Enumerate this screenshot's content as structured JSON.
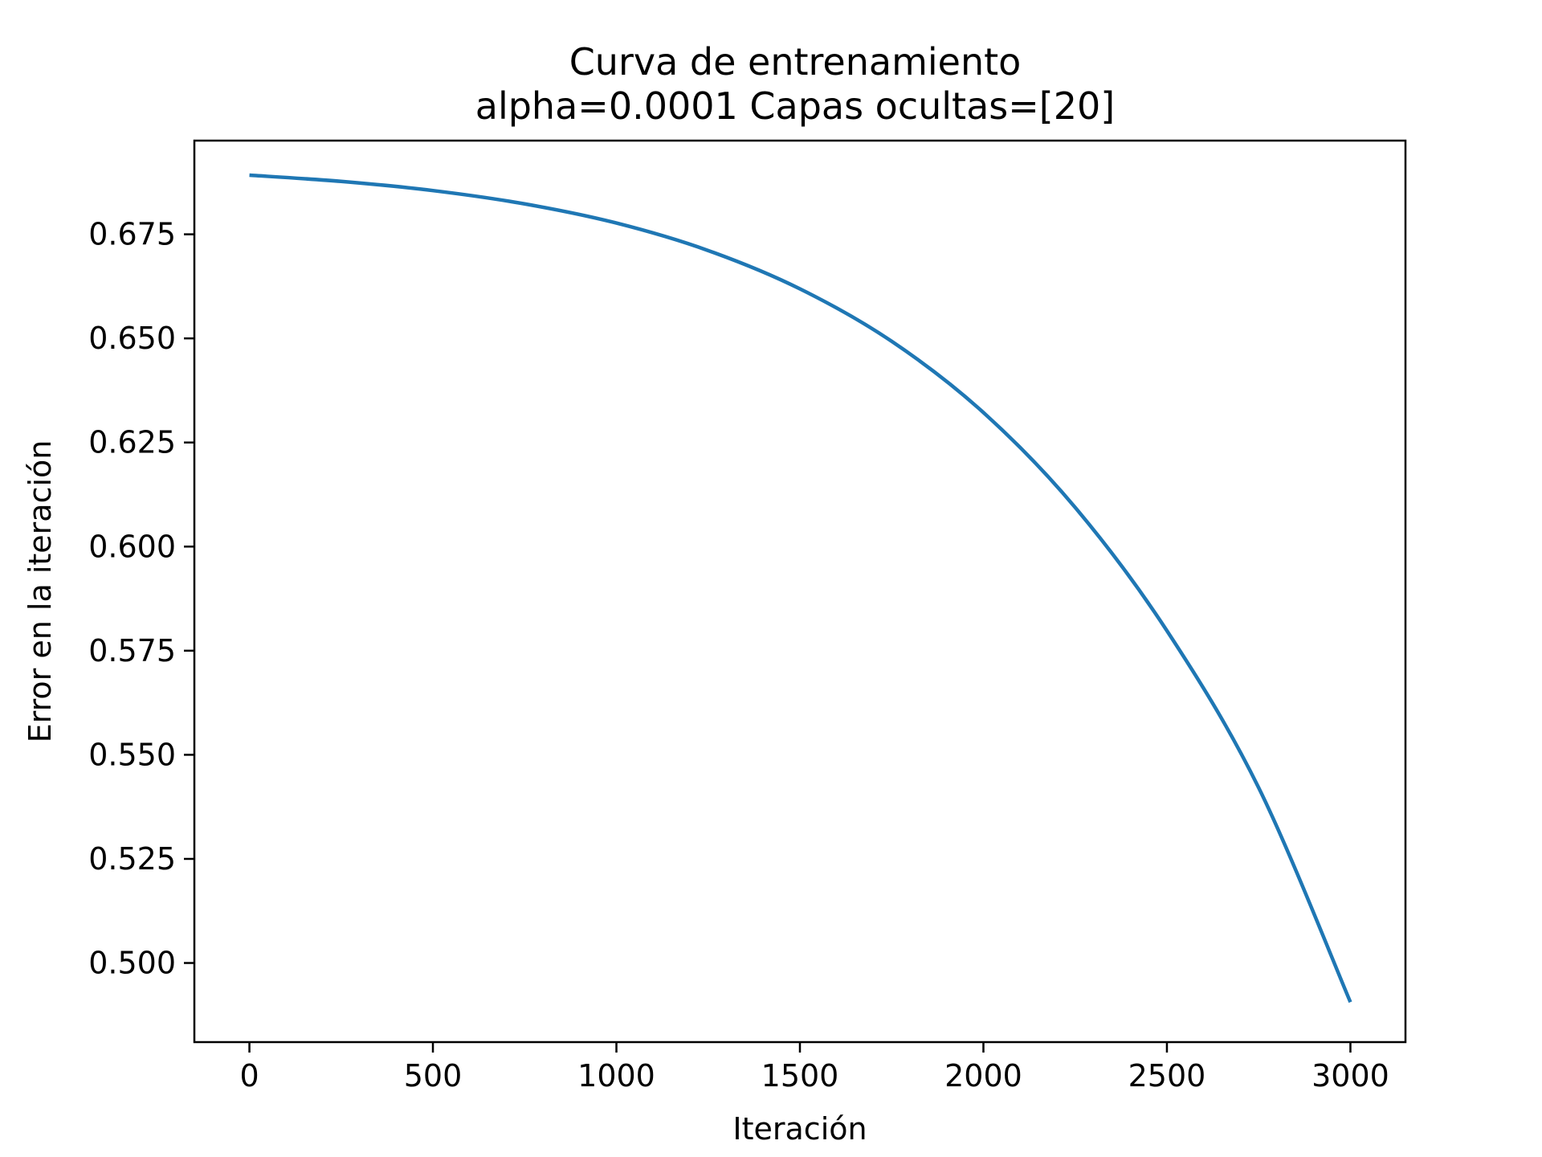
{
  "chart_data": {
    "type": "line",
    "title": "Curva de entrenamiento",
    "subtitle": "alpha=0.0001 Capas ocultas=[20]",
    "xlabel": "Iteración",
    "ylabel": "Error en la iteración",
    "xlim": [
      -150,
      3150
    ],
    "ylim": [
      0.481,
      0.6975
    ],
    "xticks": [
      0,
      500,
      1000,
      1500,
      2000,
      2500,
      3000
    ],
    "xtick_labels": [
      "0",
      "500",
      "1000",
      "1500",
      "2000",
      "2500",
      "3000"
    ],
    "yticks": [
      0.5,
      0.525,
      0.55,
      0.575,
      0.6,
      0.625,
      0.65,
      0.675
    ],
    "ytick_labels": [
      "0.500",
      "0.525",
      "0.550",
      "0.575",
      "0.600",
      "0.625",
      "0.650",
      "0.675"
    ],
    "grid": false,
    "series": [
      {
        "color": "#1f77b4",
        "x": [
          0,
          250,
          500,
          750,
          1000,
          1250,
          1500,
          1750,
          2000,
          2250,
          2500,
          2750,
          3000
        ],
        "y": [
          0.6892,
          0.6877,
          0.6855,
          0.6823,
          0.6777,
          0.6711,
          0.6619,
          0.6493,
          0.6322,
          0.6094,
          0.5798,
          0.5421,
          0.4906
        ]
      }
    ]
  }
}
